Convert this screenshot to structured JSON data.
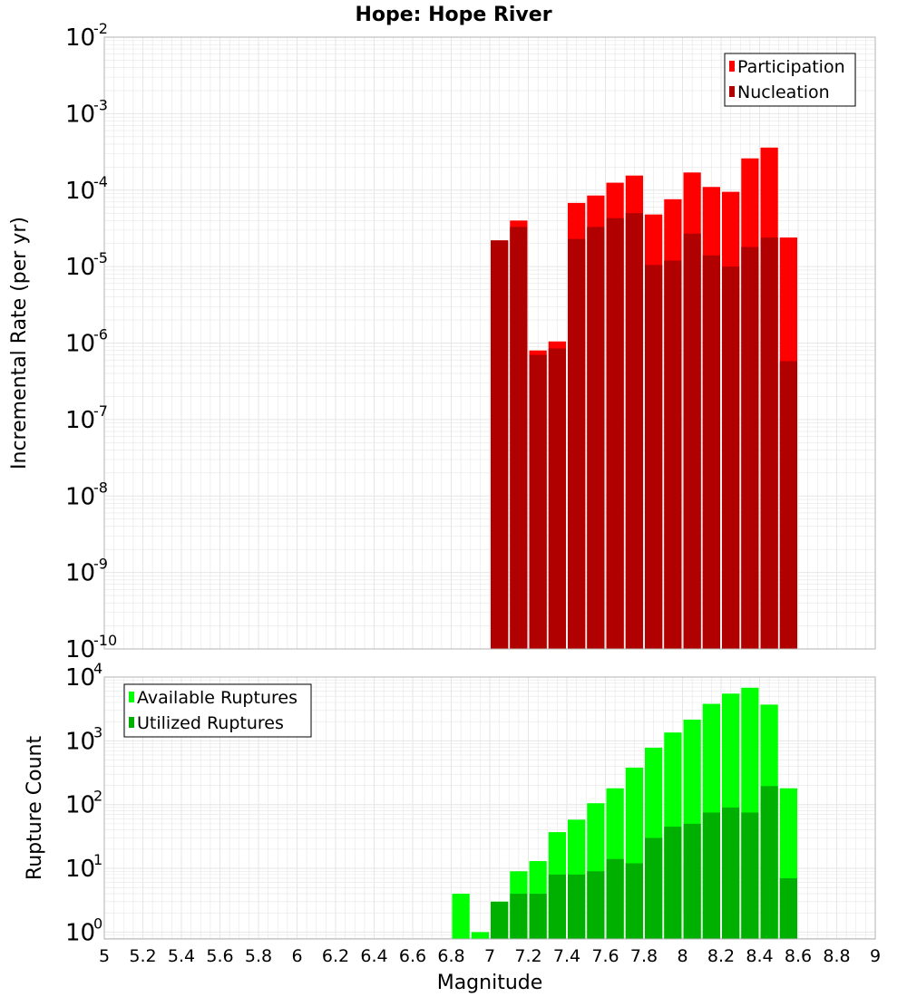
{
  "title": "Hope: Hope River",
  "xlabel": "Magnitude",
  "colors": {
    "participation": "#ff0000",
    "nucleation": "#b00000",
    "available": "#00ff00",
    "utilized": "#00b000",
    "grid": "#e6e6e6",
    "frame": "#b3b3b3"
  },
  "chart_data": [
    {
      "type": "bar",
      "panel": "top",
      "ylabel": "Incremental Rate (per yr)",
      "yscale": "log",
      "xlim": [
        5,
        9
      ],
      "ylim": [
        1e-10,
        0.01
      ],
      "y_tick_exponents": [
        -10,
        -9,
        -8,
        -7,
        -6,
        -5,
        -4,
        -3,
        -2
      ],
      "legend_position": "top-right",
      "x": [
        7.05,
        7.15,
        7.25,
        7.35,
        7.45,
        7.55,
        7.65,
        7.75,
        7.85,
        7.95,
        8.05,
        8.15,
        8.25,
        8.35,
        8.45,
        8.55
      ],
      "series": [
        {
          "name": "Participation",
          "values": [
            2.2e-05,
            4e-05,
            8e-07,
            1.05e-06,
            6.8e-05,
            8.5e-05,
            0.000125,
            0.000155,
            4.8e-05,
            7.6e-05,
            0.00017,
            0.00011,
            9.5e-05,
            0.00026,
            0.00036,
            2.4e-05
          ]
        },
        {
          "name": "Nucleation",
          "values": [
            2.2e-05,
            3.3e-05,
            7e-07,
            8.5e-07,
            2.3e-05,
            3.3e-05,
            4.3e-05,
            5e-05,
            1.05e-05,
            1.2e-05,
            2.7e-05,
            1.4e-05,
            1e-05,
            1.8e-05,
            2.4e-05,
            5.8e-07
          ]
        }
      ]
    },
    {
      "type": "bar",
      "panel": "bottom",
      "ylabel": "Rupture Count",
      "yscale": "log",
      "xlim": [
        5,
        9
      ],
      "ylim": [
        0.78,
        10000
      ],
      "y_tick_exponents": [
        0,
        1,
        2,
        3,
        4
      ],
      "legend_position": "top-left",
      "x": [
        6.85,
        6.95,
        7.05,
        7.15,
        7.25,
        7.35,
        7.45,
        7.55,
        7.65,
        7.75,
        7.85,
        7.95,
        8.05,
        8.15,
        8.25,
        8.35,
        8.45,
        8.55
      ],
      "series": [
        {
          "name": "Available Ruptures",
          "values": [
            4,
            1,
            3,
            9,
            13,
            37,
            58,
            105,
            180,
            380,
            780,
            1350,
            2150,
            3800,
            5500,
            6800,
            3700,
            180
          ]
        },
        {
          "name": "Utilized Ruptures",
          "values": [
            0,
            0,
            3,
            4,
            4,
            8,
            8,
            9,
            14,
            12,
            30,
            45,
            50,
            75,
            90,
            75,
            195,
            7
          ]
        }
      ]
    }
  ],
  "x_ticks": [
    "5",
    "5.2",
    "5.4",
    "5.6",
    "5.8",
    "6",
    "6.2",
    "6.4",
    "6.6",
    "6.8",
    "7",
    "7.2",
    "7.4",
    "7.6",
    "7.8",
    "8",
    "8.2",
    "8.4",
    "8.6",
    "8.8",
    "9"
  ]
}
